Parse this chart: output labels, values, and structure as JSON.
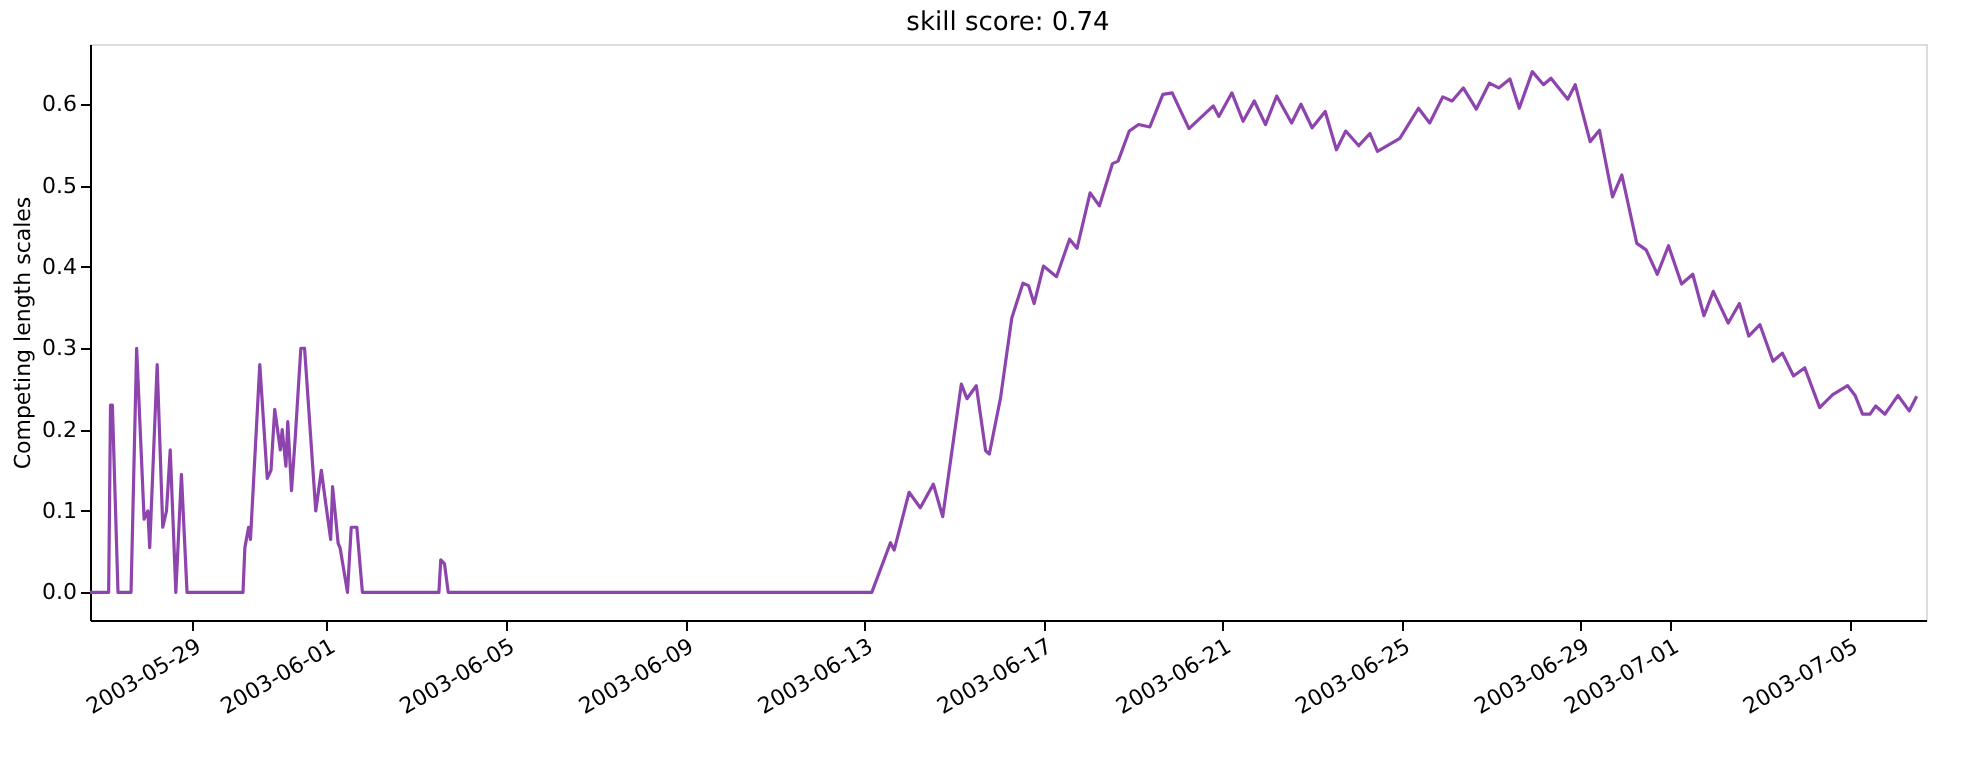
{
  "chart_data": {
    "type": "line",
    "title": "skill score: 0.74",
    "ylabel": "Competing length scales",
    "xlim": [
      "2003-05-26T17:00",
      "2003-07-06T17:00"
    ],
    "xticks": [
      "2003-05-29",
      "2003-06-01",
      "2003-06-05",
      "2003-06-09",
      "2003-06-13",
      "2003-06-17",
      "2003-06-21",
      "2003-06-25",
      "2003-06-29",
      "2003-07-01",
      "2003-07-05"
    ],
    "ylim": [
      -0.034,
      0.674
    ],
    "yticks": [
      {
        "value": 0,
        "label": "0.0"
      },
      0.1,
      0.2,
      0.3,
      0.4,
      0.5,
      0.6
    ],
    "grid": false,
    "legend": false,
    "marker": "none",
    "line_style": "solid",
    "series": [
      {
        "color": "#8e44ad",
        "x": [
          "2003-05-26T17:00",
          "2003-05-27T03:00",
          "2003-05-27T04:00",
          "2003-05-27T05:00",
          "2003-05-27T08:00",
          "2003-05-27T15:00",
          "2003-05-27T18:00",
          "2003-05-27T22:00",
          "2003-05-28T00:00",
          "2003-05-28T01:00",
          "2003-05-28T05:00",
          "2003-05-28T08:00",
          "2003-05-28T10:00",
          "2003-05-28T12:00",
          "2003-05-28T15:00",
          "2003-05-28T18:00",
          "2003-05-28T21:00",
          "2003-05-30T03:00",
          "2003-05-30T04:00",
          "2003-05-30T06:00",
          "2003-05-30T07:00",
          "2003-05-30T12:00",
          "2003-05-30T16:00",
          "2003-05-30T18:00",
          "2003-05-30T20:00",
          "2003-05-30T23:00",
          "2003-05-31T00:00",
          "2003-05-31T02:00",
          "2003-05-31T03:00",
          "2003-05-31T05:00",
          "2003-05-31T07:00",
          "2003-05-31T10:00",
          "2003-05-31T12:00",
          "2003-05-31T18:00",
          "2003-05-31T21:00",
          "2003-05-31T23:00",
          "2003-06-01T02:00",
          "2003-06-01T03:00",
          "2003-06-01T06:00",
          "2003-06-01T07:00",
          "2003-06-01T11:00",
          "2003-06-01T13:00",
          "2003-06-01T16:00",
          "2003-06-01T19:00",
          "2003-06-03T12:00",
          "2003-06-03T13:00",
          "2003-06-03T15:00",
          "2003-06-03T17:00",
          "2003-06-13T04:00",
          "2003-06-13T14:00",
          "2003-06-13T16:00",
          "2003-06-14T00:00",
          "2003-06-14T06:00",
          "2003-06-14T13:00",
          "2003-06-14T18:00",
          "2003-06-15T04:00",
          "2003-06-15T07:00",
          "2003-06-15T12:00",
          "2003-06-15T17:00",
          "2003-06-15T19:00",
          "2003-06-16T01:00",
          "2003-06-16T07:00",
          "2003-06-16T13:00",
          "2003-06-16T16:00",
          "2003-06-16T19:00",
          "2003-06-17T00:00",
          "2003-06-17T07:00",
          "2003-06-17T14:00",
          "2003-06-17T18:00",
          "2003-06-18T01:00",
          "2003-06-18T06:00",
          "2003-06-18T13:00",
          "2003-06-18T16:00",
          "2003-06-18T22:00",
          "2003-06-19T03:00",
          "2003-06-19T09:00",
          "2003-06-19T16:00",
          "2003-06-19T21:00",
          "2003-06-20T06:00",
          "2003-06-20T19:00",
          "2003-06-20T22:00",
          "2003-06-21T05:00",
          "2003-06-21T11:00",
          "2003-06-21T17:00",
          "2003-06-21T23:00",
          "2003-06-22T05:00",
          "2003-06-22T13:00",
          "2003-06-22T18:00",
          "2003-06-23T00:00",
          "2003-06-23T07:00",
          "2003-06-23T13:00",
          "2003-06-23T18:00",
          "2003-06-24T01:00",
          "2003-06-24T07:00",
          "2003-06-24T11:00",
          "2003-06-24T23:00",
          "2003-06-25T09:00",
          "2003-06-25T15:00",
          "2003-06-25T22:00",
          "2003-06-26T03:00",
          "2003-06-26T09:00",
          "2003-06-26T16:00",
          "2003-06-26T23:00",
          "2003-06-27T04:00",
          "2003-06-27T10:00",
          "2003-06-27T15:00",
          "2003-06-27T22:00",
          "2003-06-28T04:00",
          "2003-06-28T08:00",
          "2003-06-28T17:00",
          "2003-06-28T21:00",
          "2003-06-29T05:00",
          "2003-06-29T10:00",
          "2003-06-29T17:00",
          "2003-06-29T22:00",
          "2003-06-30T06:00",
          "2003-06-30T11:00",
          "2003-06-30T17:00",
          "2003-06-30T23:00",
          "2003-07-01T06:00",
          "2003-07-01T12:00",
          "2003-07-01T18:00",
          "2003-07-01T23:00",
          "2003-07-02T07:00",
          "2003-07-02T13:00",
          "2003-07-02T18:00",
          "2003-07-03T00:00",
          "2003-07-03T07:00",
          "2003-07-03T12:00",
          "2003-07-03T18:00",
          "2003-07-04T00:00",
          "2003-07-04T08:00",
          "2003-07-04T15:00",
          "2003-07-04T23:00",
          "2003-07-05T03:00",
          "2003-07-05T07:00",
          "2003-07-05T11:00",
          "2003-07-05T14:00",
          "2003-07-05T19:00",
          "2003-07-06T02:00",
          "2003-07-06T08:00",
          "2003-07-06T12:00"
        ],
        "values": [
          0,
          0,
          0.23,
          0.23,
          0,
          0,
          0.3,
          0.09,
          0.1,
          0.055,
          0.28,
          0.08,
          0.1,
          0.175,
          0,
          0.145,
          0,
          0,
          0.055,
          0.08,
          0.065,
          0.28,
          0.14,
          0.15,
          0.225,
          0.175,
          0.2,
          0.155,
          0.21,
          0.125,
          0.19,
          0.3,
          0.3,
          0.1,
          0.15,
          0.115,
          0.065,
          0.13,
          0.06,
          0.055,
          0,
          0.08,
          0.08,
          0,
          0,
          0.04,
          0.035,
          0,
          0,
          0.061,
          0.052,
          0.123,
          0.104,
          0.133,
          0.093,
          0.256,
          0.238,
          0.254,
          0.174,
          0.17,
          0.239,
          0.337,
          0.38,
          0.377,
          0.355,
          0.401,
          0.388,
          0.434,
          0.423,
          0.491,
          0.475,
          0.527,
          0.53,
          0.567,
          0.575,
          0.572,
          0.612,
          0.614,
          0.57,
          0.598,
          0.585,
          0.614,
          0.579,
          0.604,
          0.575,
          0.61,
          0.577,
          0.6,
          0.571,
          0.591,
          0.544,
          0.567,
          0.549,
          0.564,
          0.542,
          0.558,
          0.595,
          0.577,
          0.609,
          0.604,
          0.62,
          0.594,
          0.626,
          0.62,
          0.631,
          0.595,
          0.64,
          0.624,
          0.632,
          0.606,
          0.624,
          0.554,
          0.568,
          0.486,
          0.513,
          0.429,
          0.421,
          0.391,
          0.426,
          0.379,
          0.391,
          0.34,
          0.37,
          0.331,
          0.355,
          0.315,
          0.329,
          0.284,
          0.294,
          0.266,
          0.276,
          0.227,
          0.243,
          0.254,
          0.242,
          0.219,
          0.219,
          0.229,
          0.219,
          0.242,
          0.223,
          0.241
        ]
      }
    ]
  }
}
